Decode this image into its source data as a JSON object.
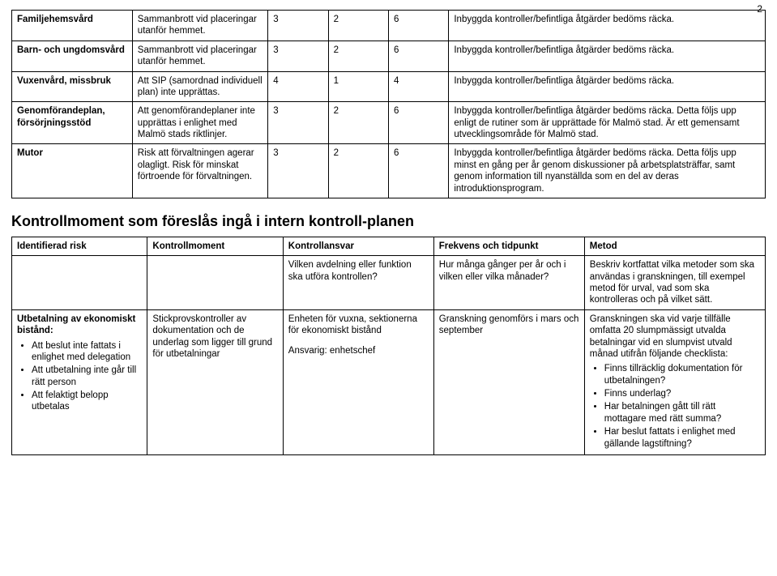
{
  "page_number": "2",
  "table1": {
    "col_widths_pct": [
      16,
      18,
      8,
      8,
      8,
      42
    ],
    "rows": [
      {
        "c0": "Familjehemsvård",
        "c1": "Sammanbrott vid placeringar utanför hemmet.",
        "c2": "3",
        "c3": "2",
        "c4": "6",
        "c5": "Inbyggda kontroller/befintliga åtgärder bedöms räcka."
      },
      {
        "c0": "Barn- och ungdomsvård",
        "c1": "Sammanbrott vid placeringar utanför hemmet.",
        "c2": "3",
        "c3": "2",
        "c4": "6",
        "c5": "Inbyggda kontroller/befintliga åtgärder bedöms räcka."
      },
      {
        "c0": "Vuxenvård, missbruk",
        "c1": "Att SIP (samordnad individuell plan) inte upprättas.",
        "c2": "4",
        "c3": "1",
        "c4": "4",
        "c5": "Inbyggda kontroller/befintliga åtgärder bedöms räcka."
      },
      {
        "c0": "Genomförandeplan, försörjningsstöd",
        "c1": "Att genomförandeplaner inte upprättas i enlighet med Malmö stads riktlinjer.",
        "c2": "3",
        "c3": "2",
        "c4": "6",
        "c5": "Inbyggda kontroller/befintliga åtgärder bedöms räcka. Detta följs upp enligt de rutiner som är upprättade för Malmö stad. Är ett gemensamt utvecklingsområde för Malmö stad."
      },
      {
        "c0": "Mutor",
        "c1": "Risk att förvaltningen agerar olagligt. Risk för minskat förtroende för förvaltningen.",
        "c2": "3",
        "c3": "2",
        "c4": "6",
        "c5": "Inbyggda kontroller/befintliga åtgärder bedöms räcka. Detta följs upp minst en gång per år genom diskussioner på arbetsplatsträffar, samt genom information till nyanställda som en del av deras introduktionsprogram."
      }
    ]
  },
  "section_title": "Kontrollmoment som föreslås ingå i intern kontroll-planen",
  "table2": {
    "col_widths_pct": [
      18,
      18,
      20,
      20,
      24
    ],
    "headers": {
      "c0": "Identifierad risk",
      "c1": "Kontrollmoment",
      "c2": "Kontrollansvar",
      "c3": "Frekvens och tidpunkt",
      "c4": "Metod"
    },
    "subheaders": {
      "c2": "Vilken avdelning eller funktion ska utföra kontrollen?",
      "c3": "Hur många gånger per år och i vilken eller vilka månader?",
      "c4": "Beskriv kortfattat vilka metoder som ska användas i granskningen, till exempel metod för urval, vad som ska kontrolleras och på vilket sätt."
    },
    "row": {
      "c0_lead": "Utbetalning av ekonomiskt bistånd:",
      "c0_bullets": [
        "Att beslut inte fattats i enlighet med delegation",
        "Att utbetalning inte går till rätt person",
        "Att felaktigt belopp utbetalas"
      ],
      "c1": "Stickprovskontroller av dokumentation och de underlag som ligger till grund för utbetalningar",
      "c2_line1": "Enheten för vuxna, sektionerna för ekonomiskt bistånd",
      "c2_line2": "Ansvarig: enhetschef",
      "c3": "Granskning genomförs i mars och september",
      "c4_lead": "Granskningen ska vid varje tillfälle omfatta 20 slumpmässigt utvalda betalningar vid en slumpvist utvald månad utifrån följande checklista:",
      "c4_bullets": [
        "Finns tillräcklig dokumentation för utbetalningen?",
        "Finns underlag?",
        "Har betalningen gått till rätt mottagare med rätt summa?",
        "Har beslut fattats i enlighet med gällande lagstiftning?"
      ]
    }
  }
}
